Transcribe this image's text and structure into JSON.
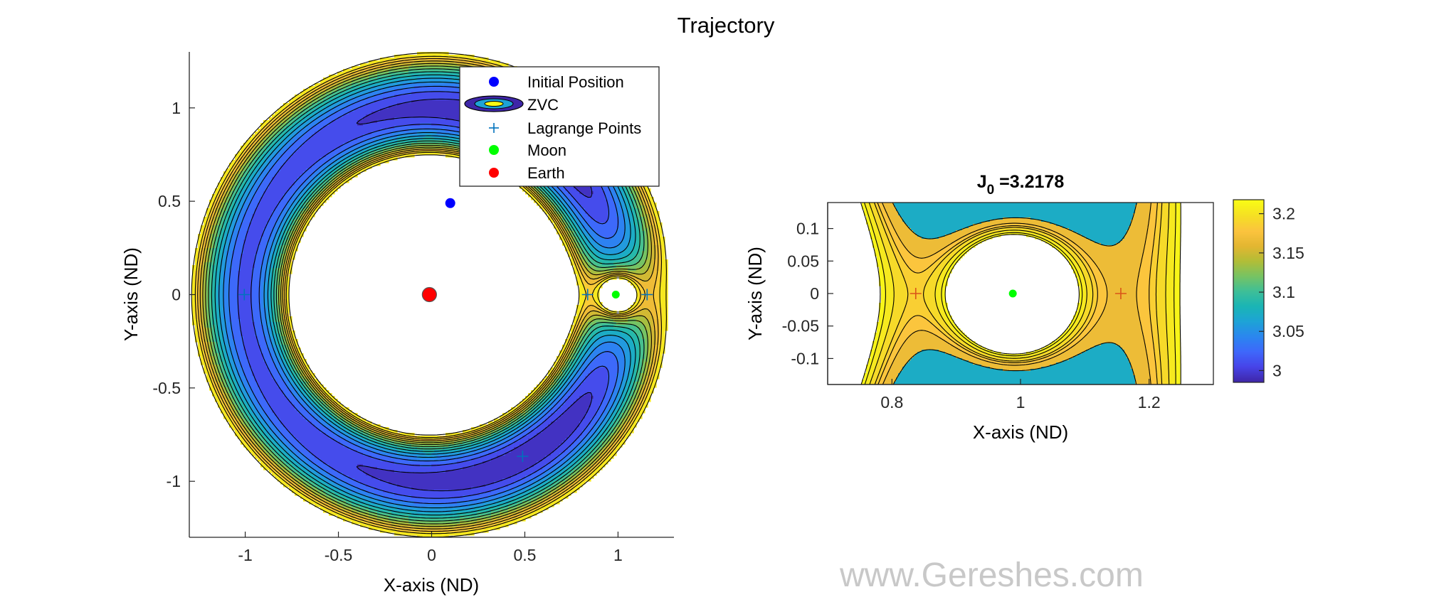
{
  "figure": {
    "title": "Trajectory",
    "watermark": "www.Gereshes.com"
  },
  "chart_data": [
    {
      "type": "contour",
      "xlabel": "X-axis (ND)",
      "ylabel": "Y-axis (ND)",
      "xlim": [
        -1.3,
        1.3
      ],
      "ylim": [
        -1.3,
        1.3
      ],
      "xticks": [
        -1,
        -0.5,
        0,
        0.5,
        1
      ],
      "xtick_labels": [
        "-1",
        "-0.5",
        "0",
        "0.5",
        "1"
      ],
      "yticks": [
        -1,
        -0.5,
        0,
        0.5,
        1
      ],
      "ytick_labels": [
        "-1",
        "-0.5",
        "0",
        "0.5",
        "1"
      ],
      "mu": 0.01215,
      "levels": [
        2.984,
        3.0,
        3.016,
        3.032,
        3.048,
        3.064,
        3.08,
        3.096,
        3.112,
        3.128,
        3.144,
        3.16,
        3.176,
        3.192,
        3.2178
      ],
      "series": [
        {
          "name": "Initial Position",
          "x": [
            0.1
          ],
          "y": [
            0.49
          ],
          "color": "#0000ff",
          "marker": "circle"
        },
        {
          "name": "ZVC",
          "marker": "contour-ellipse"
        },
        {
          "name": "Lagrange Points",
          "x": [
            0.837,
            1.156,
            -1.005,
            0.488,
            0.488
          ],
          "y": [
            0,
            0,
            0,
            0.866,
            -0.866
          ],
          "color": "#0072bd",
          "marker": "plus"
        },
        {
          "name": "Moon",
          "x": [
            0.988
          ],
          "y": [
            0
          ],
          "color": "#00ff00",
          "marker": "circle"
        },
        {
          "name": "Earth",
          "x": [
            -0.012
          ],
          "y": [
            0
          ],
          "color": "#ff0000",
          "marker": "circle"
        }
      ],
      "legend_position": "top-right"
    },
    {
      "type": "contour",
      "title": "J",
      "title_subscript": "0",
      "title_value": " =3.2178",
      "xlabel": "X-axis (ND)",
      "ylabel": "Y-axis (ND)",
      "xlim": [
        0.7,
        1.3
      ],
      "ylim": [
        -0.14,
        0.14
      ],
      "xticks": [
        0.8,
        1,
        1.2
      ],
      "xtick_labels": [
        "0.8",
        "1",
        "1.2"
      ],
      "yticks": [
        -0.1,
        -0.05,
        0,
        0.05,
        0.1
      ],
      "ytick_labels": [
        "-0.1",
        "-0.05",
        "0",
        "0.05",
        "0.1"
      ],
      "levels": [
        3.16,
        3.176,
        3.184,
        3.19,
        3.2,
        3.21,
        3.2178
      ],
      "series": [
        {
          "name": "Lagrange Points",
          "x": [
            0.837,
            1.156
          ],
          "y": [
            0,
            0
          ],
          "color": "#d95319",
          "marker": "plus"
        },
        {
          "name": "Moon",
          "x": [
            0.988
          ],
          "y": [
            0
          ],
          "color": "#00ff00",
          "marker": "circle"
        }
      ],
      "colorbar": {
        "ticks": [
          3,
          3.05,
          3.1,
          3.15,
          3.2
        ],
        "tick_labels": [
          "3",
          "3.05",
          "3.1",
          "3.15",
          "3.2"
        ],
        "range": [
          2.985,
          3.2178
        ]
      }
    }
  ],
  "colors": {
    "parula": [
      "#3e26a8",
      "#4744e8",
      "#3e67fb",
      "#2b86ef",
      "#1ea3d6",
      "#1ab5b5",
      "#3ebf97",
      "#77c363",
      "#b2bd37",
      "#e3b631",
      "#fbc43e",
      "#f5df24",
      "#f9fb15"
    ]
  }
}
